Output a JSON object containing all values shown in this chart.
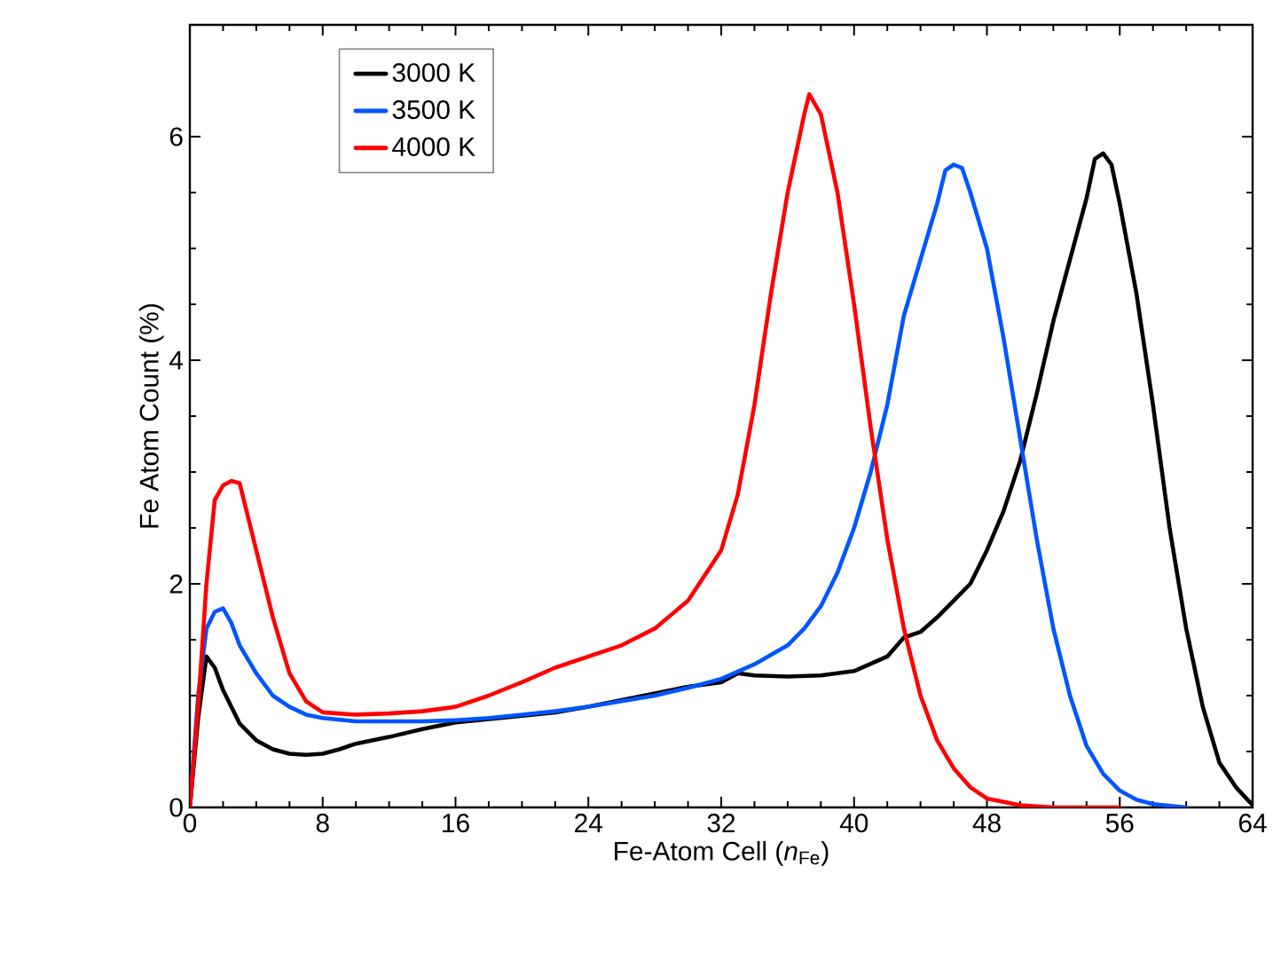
{
  "chart_data": {
    "type": "line",
    "xlabel": "Fe-Atom Cell (*n*$_{Fe}$)",
    "ylabel": "Fe Atom Count (%)",
    "xlim": [
      0,
      64
    ],
    "ylim": [
      0,
      7
    ],
    "xticks": [
      0,
      8,
      16,
      24,
      32,
      40,
      48,
      56,
      64
    ],
    "yticks": [
      0,
      2,
      4,
      6
    ],
    "legend": "top left",
    "marker": "none",
    "line_style": "solid",
    "series": [
      {
        "name": "3000 K",
        "color": "#000000",
        "x": [
          0,
          0.5,
          1,
          1.5,
          2,
          3,
          4,
          5,
          6,
          7,
          8,
          9,
          10,
          12,
          14,
          16,
          18,
          20,
          22,
          24,
          26,
          28,
          30,
          32,
          33,
          34,
          36,
          38,
          40,
          42,
          43,
          44,
          45,
          46,
          47,
          48,
          49,
          50,
          51,
          52,
          53,
          54,
          54.5,
          55,
          55.5,
          56,
          57,
          58,
          59,
          60,
          61,
          62,
          63,
          64
        ],
        "values": [
          0,
          0.8,
          1.35,
          1.25,
          1.05,
          0.75,
          0.6,
          0.52,
          0.48,
          0.47,
          0.48,
          0.52,
          0.57,
          0.63,
          0.7,
          0.76,
          0.79,
          0.82,
          0.85,
          0.9,
          0.96,
          1.02,
          1.08,
          1.12,
          1.2,
          1.18,
          1.17,
          1.18,
          1.22,
          1.35,
          1.52,
          1.57,
          1.7,
          1.85,
          2.0,
          2.3,
          2.65,
          3.1,
          3.7,
          4.35,
          4.9,
          5.45,
          5.8,
          5.85,
          5.75,
          5.4,
          4.6,
          3.6,
          2.5,
          1.6,
          0.9,
          0.4,
          0.18,
          0.02
        ]
      },
      {
        "name": "3500 K",
        "color": "#0055ff",
        "x": [
          0,
          0.5,
          1,
          1.5,
          2,
          2.5,
          3,
          4,
          5,
          6,
          7,
          8,
          10,
          12,
          14,
          16,
          18,
          20,
          22,
          24,
          26,
          28,
          30,
          32,
          34,
          36,
          37,
          38,
          39,
          40,
          41,
          42,
          43,
          44,
          45,
          45.5,
          46,
          46.5,
          47,
          48,
          49,
          50,
          51,
          52,
          53,
          54,
          55,
          56,
          57,
          58,
          60
        ],
        "values": [
          0,
          1.0,
          1.6,
          1.75,
          1.78,
          1.65,
          1.45,
          1.2,
          1.0,
          0.9,
          0.83,
          0.8,
          0.77,
          0.77,
          0.77,
          0.78,
          0.8,
          0.83,
          0.86,
          0.9,
          0.95,
          1.0,
          1.07,
          1.15,
          1.28,
          1.45,
          1.6,
          1.8,
          2.1,
          2.5,
          3.0,
          3.6,
          4.4,
          4.9,
          5.4,
          5.7,
          5.75,
          5.72,
          5.5,
          5.0,
          4.2,
          3.3,
          2.4,
          1.6,
          1.0,
          0.55,
          0.3,
          0.15,
          0.07,
          0.03,
          0.0
        ]
      },
      {
        "name": "4000 K",
        "color": "#ff0000",
        "x": [
          0,
          0.5,
          1,
          1.5,
          2,
          2.5,
          3,
          4,
          5,
          6,
          7,
          8,
          10,
          12,
          14,
          16,
          18,
          20,
          22,
          24,
          26,
          28,
          30,
          32,
          33,
          34,
          35,
          36,
          37,
          37.3,
          38,
          39,
          40,
          41,
          42,
          43,
          44,
          45,
          46,
          47,
          48,
          50,
          52,
          56
        ],
        "values": [
          0,
          0.9,
          2.0,
          2.75,
          2.88,
          2.92,
          2.9,
          2.3,
          1.7,
          1.2,
          0.95,
          0.85,
          0.83,
          0.84,
          0.86,
          0.9,
          1.0,
          1.12,
          1.25,
          1.35,
          1.45,
          1.6,
          1.85,
          2.3,
          2.8,
          3.6,
          4.6,
          5.5,
          6.2,
          6.38,
          6.2,
          5.5,
          4.5,
          3.4,
          2.4,
          1.6,
          1.0,
          0.6,
          0.35,
          0.18,
          0.08,
          0.02,
          0.0,
          0.0
        ]
      }
    ]
  }
}
